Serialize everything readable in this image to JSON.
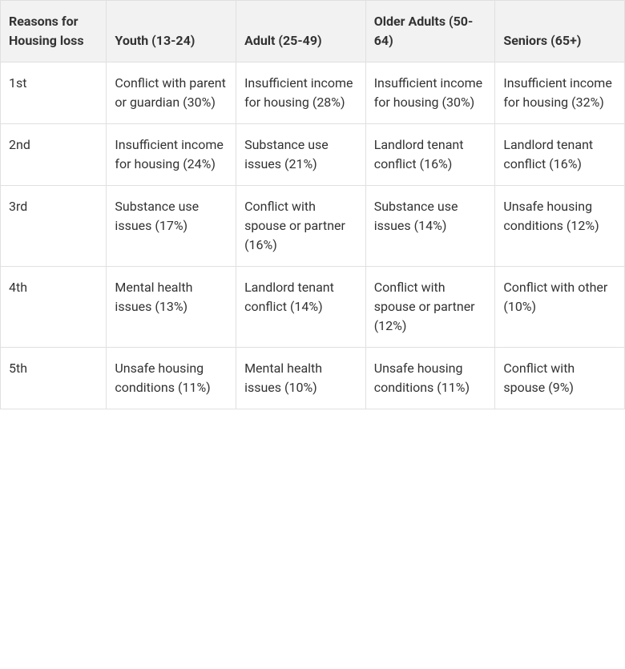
{
  "table": {
    "type": "table",
    "background_color": "#ffffff",
    "header_background_color": "#f2f2f2",
    "border_color": "#e0e0e0",
    "text_color": "#333333",
    "font_size": 16,
    "columns": [
      "Reasons for Housing loss",
      "Youth (13-24)",
      "Adult (25-49)",
      "Older Adults (50-64)",
      "Seniors (65+)"
    ],
    "rows": [
      {
        "rank": "1st",
        "youth": "Conflict with parent or guardian (30%)",
        "adult": "Insufficient income for housing (28%)",
        "older": "Insufficient income for housing (30%)",
        "seniors": "Insufficient income for housing (32%)"
      },
      {
        "rank": "2nd",
        "youth": "Insufficient income for housing (24%)",
        "adult": "Substance use issues (21%)",
        "older": "Landlord tenant conflict (16%)",
        "seniors": "Landlord tenant conflict (16%)"
      },
      {
        "rank": "3rd",
        "youth": "Substance use issues (17%)",
        "adult": "Conflict with spouse or partner (16%)",
        "older": "Substance use issues (14%)",
        "seniors": "Unsafe housing conditions (12%)"
      },
      {
        "rank": "4th",
        "youth": "Mental health issues (13%)",
        "adult": "Landlord tenant conflict (14%)",
        "older": "Conflict with spouse or partner (12%)",
        "seniors": "Conflict with other (10%)"
      },
      {
        "rank": "5th",
        "youth": "Unsafe housing conditions (11%)",
        "adult": "Mental health issues (10%)",
        "older": "Unsafe housing conditions (11%)",
        "seniors": "Conflict with spouse (9%)"
      }
    ]
  }
}
